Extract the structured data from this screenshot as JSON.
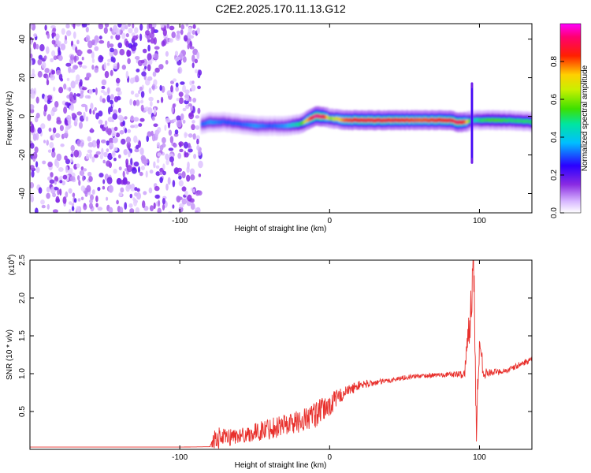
{
  "title": "C2E2.2025.170.11.13.G12",
  "chart_data": [
    {
      "type": "heatmap",
      "xlabel": "Height of straight line (km)",
      "ylabel": "Frequency (Hz)",
      "xlim": [
        -200,
        135
      ],
      "ylim": [
        -50,
        48
      ],
      "x_ticks": [
        -100,
        0,
        100
      ],
      "y_ticks": [
        -40,
        -20,
        0,
        20,
        40
      ],
      "grid": false,
      "noise_region": {
        "x_range": [
          -200,
          -86
        ],
        "y_range": [
          -50,
          48
        ],
        "level": 0.1
      },
      "ridge": {
        "x": [
          -86,
          -80,
          -70,
          -60,
          -50,
          -40,
          -30,
          -20,
          -15,
          -10,
          -5,
          0,
          10,
          20,
          40,
          60,
          80,
          85,
          90,
          95,
          100,
          110,
          120,
          135
        ],
        "freq": [
          -4,
          -3,
          -3,
          -4,
          -5,
          -5,
          -5,
          -4,
          -2,
          0,
          0,
          -1,
          -2,
          -2,
          -2,
          -2,
          -2,
          -3,
          -3,
          -2,
          -2,
          -2,
          -2,
          -3
        ],
        "amplitude": [
          0.3,
          0.35,
          0.3,
          0.3,
          0.35,
          0.3,
          0.35,
          0.5,
          0.75,
          0.95,
          0.9,
          0.6,
          0.8,
          0.85,
          0.85,
          0.8,
          0.85,
          0.9,
          0.8,
          0.4,
          0.5,
          0.55,
          0.5,
          0.5
        ]
      },
      "spikes": [
        {
          "x": 95,
          "freq_range": [
            -24,
            17
          ]
        }
      ],
      "colorbar": {
        "label": "Normalized spectral amplitude",
        "range": [
          0,
          1
        ],
        "ticks": [
          "0.0",
          "0.2",
          "0.4",
          "0.6",
          "0.8"
        ],
        "tick_values": [
          0,
          0.2,
          0.4,
          0.6,
          0.8
        ],
        "colormap": "rainbow (white-purple-blue-cyan-green-yellow-red-magenta)"
      }
    },
    {
      "type": "line",
      "xlabel": "Height of straight line (km)",
      "ylabel": "SNR (10 * v/v)",
      "y_scale_label": "(x10",
      "y_scale_exp": "4",
      "y_scale_close": ")",
      "xlim": [
        -200,
        135
      ],
      "ylim": [
        0,
        25000
      ],
      "x_ticks": [
        -100,
        0,
        100
      ],
      "y_ticks": [
        "0.5",
        "1.0",
        "1.5",
        "2.0",
        "2.5"
      ],
      "y_tick_values": [
        5000,
        10000,
        15000,
        20000,
        25000
      ],
      "grid": false,
      "series": [
        {
          "color": "#e8302c",
          "x": [
            -200,
            -150,
            -100,
            -80,
            -76,
            -70,
            -65,
            -60,
            -50,
            -40,
            -30,
            -20,
            -10,
            0,
            5,
            10,
            20,
            30,
            40,
            50,
            60,
            70,
            80,
            90,
            93,
            96,
            98,
            100,
            103,
            110,
            120,
            125,
            130,
            135
          ],
          "values": [
            300,
            300,
            300,
            350,
            1500,
            1500,
            1700,
            1800,
            2200,
            2800,
            3300,
            3700,
            4500,
            5800,
            6800,
            7500,
            8500,
            8800,
            9100,
            9500,
            9700,
            9800,
            9900,
            9900,
            16000,
            24500,
            3000,
            14000,
            10000,
            10200,
            10500,
            11000,
            11500,
            11800
          ],
          "noise": [
            0,
            0,
            0,
            0,
            1500,
            1200,
            1200,
            1000,
            1200,
            1500,
            1500,
            1500,
            1800,
            1500,
            1200,
            800,
            600,
            400,
            350,
            300,
            300,
            300,
            300,
            600,
            3000,
            5000,
            3000,
            2500,
            700,
            400,
            400,
            400,
            400,
            400
          ]
        }
      ]
    }
  ],
  "colors": {
    "line": "#e8302c",
    "axes": "#000000",
    "background": "#ffffff"
  }
}
